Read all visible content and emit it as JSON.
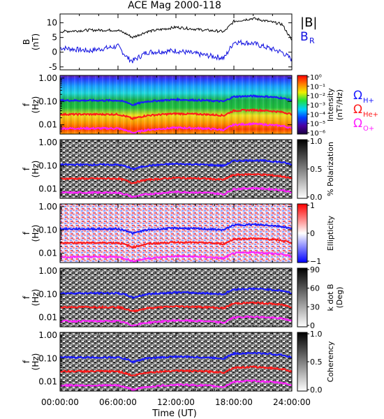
{
  "title": "ACE Mag 2000-118",
  "x_axis": {
    "label": "Time (UT)",
    "ticks": [
      "00:00:00",
      "06:00:00",
      "12:00:00",
      "18:00:00",
      "24:00:00"
    ]
  },
  "legend": {
    "magnitude_label": "|B|",
    "radial_label_main": "B",
    "radial_label_sub": "R",
    "gyro_h_main": "Ω",
    "gyro_h_sub": "H+",
    "gyro_he_main": "Ω",
    "gyro_he_sub": "He+",
    "gyro_o_main": "Ω",
    "gyro_o_sub": "O+"
  },
  "colors": {
    "magnitude": "#000000",
    "radial": "#1010e0",
    "gyro_h": "#1a1aff",
    "gyro_he": "#ff1a1a",
    "gyro_o": "#ff20ff"
  },
  "panels": [
    {
      "id": "field",
      "ylabel_main": "B",
      "ylabel_sub": "(nT)",
      "yticks": [
        "10",
        "5",
        "0",
        "-5"
      ]
    },
    {
      "id": "intensity",
      "ylabel_main": "f",
      "ylabel_sub": "(Hz)",
      "yticks": [
        "1.00",
        "0.10",
        "0.01"
      ],
      "colorbar": "rainbow",
      "cb_title_main": "Intensity",
      "cb_title_sub": "(nT²/Hz)",
      "cb_ticks": [
        "10⁰",
        "10⁻¹",
        "10⁻²",
        "10⁻³",
        "10⁻⁴",
        "10⁻⁵",
        "10⁻⁶"
      ]
    },
    {
      "id": "polarization",
      "ylabel_main": "f",
      "ylabel_sub": "(Hz)",
      "yticks": [
        "1.00",
        "0.10",
        "0.01"
      ],
      "colorbar": "gray",
      "cb_title_main": "% Polarization",
      "cb_title_sub": "",
      "cb_ticks": [
        "1.0",
        "0.5",
        "0.0"
      ]
    },
    {
      "id": "ellipticity",
      "ylabel_main": "f",
      "ylabel_sub": "(Hz)",
      "yticks": [
        "1.00",
        "0.10",
        "0.01"
      ],
      "colorbar": "bwr",
      "cb_title_main": "Ellipticity",
      "cb_title_sub": "",
      "cb_ticks": [
        "1",
        "0",
        "−1"
      ]
    },
    {
      "id": "kdotb",
      "ylabel_main": "f",
      "ylabel_sub": "(Hz)",
      "yticks": [
        "1.00",
        "0.10",
        "0.01"
      ],
      "colorbar": "gray",
      "cb_title_main": "k dot B",
      "cb_title_sub": "(Deg)",
      "cb_ticks": [
        "90",
        "60",
        "30",
        "0"
      ]
    },
    {
      "id": "coherency",
      "ylabel_main": "f",
      "ylabel_sub": "(Hz)",
      "yticks": [
        "1.00",
        "0.10",
        "0.01"
      ],
      "colorbar": "gray",
      "cb_title_main": "Coherency",
      "cb_title_sub": "",
      "cb_ticks": [
        "1.0",
        "0.5",
        "0.0"
      ]
    }
  ],
  "chart_data": {
    "type": "line",
    "title": "ACE Mag 2000-118",
    "xlabel": "Time (UT)",
    "x": [
      0,
      3,
      6,
      7,
      7.5,
      9,
      12,
      15,
      17,
      18,
      20,
      21.5,
      23,
      24
    ],
    "xlim": [
      0,
      24
    ],
    "series": [
      {
        "name": "|B|",
        "values": [
          7,
          7.5,
          7.5,
          6,
          5,
          7,
          8.5,
          7.5,
          7,
          10.5,
          11.5,
          10.5,
          9.5,
          4
        ]
      },
      {
        "name": "BR",
        "values": [
          1.5,
          0.5,
          2,
          -2,
          -3,
          0,
          0.5,
          -1,
          -2,
          3.5,
          3,
          1.5,
          0,
          -2.5
        ]
      },
      {
        "name": "ΩH+",
        "values": [
          0.11,
          0.11,
          0.11,
          0.09,
          0.07,
          0.1,
          0.12,
          0.11,
          0.1,
          0.16,
          0.17,
          0.16,
          0.14,
          0.11
        ]
      },
      {
        "name": "ΩHe+",
        "values": [
          0.028,
          0.028,
          0.028,
          0.022,
          0.018,
          0.025,
          0.03,
          0.028,
          0.025,
          0.04,
          0.043,
          0.04,
          0.035,
          0.028
        ]
      },
      {
        "name": "ΩO+",
        "values": [
          0.007,
          0.007,
          0.007,
          0.0055,
          0.0045,
          0.006,
          0.0075,
          0.007,
          0.006,
          0.01,
          0.011,
          0.01,
          0.009,
          0.007
        ]
      }
    ],
    "ylim_field": [
      -6,
      13
    ],
    "ylim_freq": [
      0.004,
      1.3
    ],
    "yscale_freq": "log"
  }
}
